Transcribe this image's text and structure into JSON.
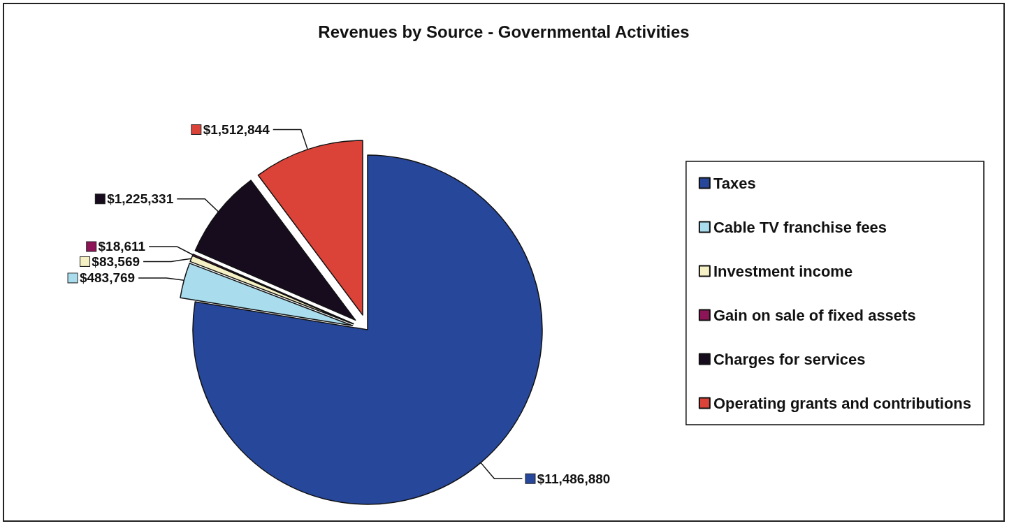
{
  "chart_data": {
    "type": "pie",
    "title": "Revenues by Source - Governmental Activities",
    "categories": [
      "Taxes",
      "Cable TV franchise fees",
      "Investment income",
      "Gain on sale of fixed assets",
      "Charges for services",
      "Operating grants and contributions"
    ],
    "values": [
      11486880,
      483769,
      83569,
      18611,
      1225331,
      1512844
    ],
    "value_labels": [
      "$11,486,880",
      "$483,769",
      "$83,569",
      "$18,611",
      "$1,225,331",
      "$1,512,844"
    ],
    "colors": [
      "#27479b",
      "#a9dcec",
      "#f6f1c4",
      "#8c1457",
      "#170c1e",
      "#dc4338"
    ],
    "legend": "right"
  }
}
